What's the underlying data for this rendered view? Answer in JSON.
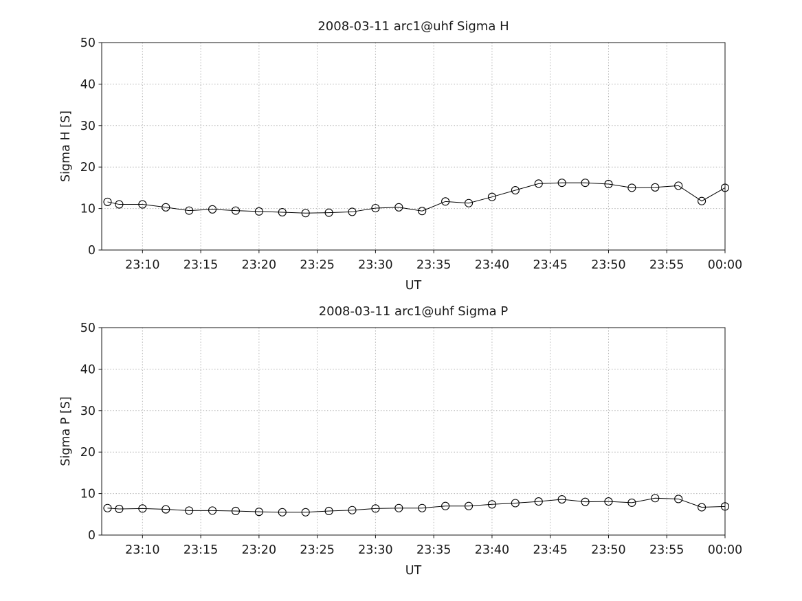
{
  "figure": {
    "background": "#ffffff",
    "line_color": "#000000",
    "grid_color": "#b5b5b5"
  },
  "chart_data": [
    {
      "type": "line",
      "title": "2008-03-11  arc1@uhf Sigma H",
      "xlabel": "UT",
      "ylabel": "Sigma H [S]",
      "ylim": [
        0,
        50
      ],
      "yticks": [
        0,
        10,
        20,
        30,
        40,
        50
      ],
      "xlim_minutes": [
        6.5,
        60
      ],
      "xticks_minutes": [
        10,
        15,
        20,
        25,
        30,
        35,
        40,
        45,
        50,
        55,
        60
      ],
      "xtick_labels": [
        "23:10",
        "23:15",
        "23:20",
        "23:25",
        "23:30",
        "23:35",
        "23:40",
        "23:45",
        "23:50",
        "23:55",
        "00:00"
      ],
      "marker": "open-circle",
      "grid": true,
      "x_minutes": [
        7,
        8,
        10,
        12,
        14,
        16,
        18,
        20,
        22,
        24,
        26,
        28,
        30,
        32,
        34,
        36,
        38,
        40,
        42,
        44,
        46,
        48,
        50,
        52,
        54,
        56,
        58,
        60
      ],
      "x_times": [
        "23:07",
        "23:08",
        "23:10",
        "23:12",
        "23:14",
        "23:16",
        "23:18",
        "23:20",
        "23:22",
        "23:24",
        "23:26",
        "23:28",
        "23:30",
        "23:32",
        "23:34",
        "23:36",
        "23:38",
        "23:40",
        "23:42",
        "23:44",
        "23:46",
        "23:48",
        "23:50",
        "23:52",
        "23:54",
        "23:56",
        "23:58",
        "00:00"
      ],
      "values": [
        11.6,
        11.0,
        11.0,
        10.3,
        9.5,
        9.8,
        9.5,
        9.3,
        9.1,
        8.9,
        9.0,
        9.2,
        10.1,
        10.3,
        9.4,
        11.7,
        11.3,
        12.8,
        14.4,
        16.0,
        16.2,
        16.2,
        15.9,
        15.0,
        15.1,
        15.5,
        11.8,
        15.0
      ]
    },
    {
      "type": "line",
      "title": "2008-03-11  arc1@uhf Sigma P",
      "xlabel": "UT",
      "ylabel": "Sigma P [S]",
      "ylim": [
        0,
        50
      ],
      "yticks": [
        0,
        10,
        20,
        30,
        40,
        50
      ],
      "xlim_minutes": [
        6.5,
        60
      ],
      "xticks_minutes": [
        10,
        15,
        20,
        25,
        30,
        35,
        40,
        45,
        50,
        55,
        60
      ],
      "xtick_labels": [
        "23:10",
        "23:15",
        "23:20",
        "23:25",
        "23:30",
        "23:35",
        "23:40",
        "23:45",
        "23:50",
        "23:55",
        "00:00"
      ],
      "marker": "open-circle",
      "grid": true,
      "x_minutes": [
        7,
        8,
        10,
        12,
        14,
        16,
        18,
        20,
        22,
        24,
        26,
        28,
        30,
        32,
        34,
        36,
        38,
        40,
        42,
        44,
        46,
        48,
        50,
        52,
        54,
        56,
        58,
        60
      ],
      "x_times": [
        "23:07",
        "23:08",
        "23:10",
        "23:12",
        "23:14",
        "23:16",
        "23:18",
        "23:20",
        "23:22",
        "23:24",
        "23:26",
        "23:28",
        "23:30",
        "23:32",
        "23:34",
        "23:36",
        "23:38",
        "23:40",
        "23:42",
        "23:44",
        "23:46",
        "23:48",
        "23:50",
        "23:52",
        "23:54",
        "23:56",
        "23:58",
        "00:00"
      ],
      "values": [
        6.5,
        6.3,
        6.4,
        6.2,
        5.9,
        5.9,
        5.8,
        5.6,
        5.5,
        5.5,
        5.8,
        6.0,
        6.4,
        6.5,
        6.5,
        7.0,
        7.0,
        7.4,
        7.7,
        8.1,
        8.6,
        8.0,
        8.1,
        7.8,
        8.9,
        8.7,
        6.7,
        6.9
      ]
    }
  ]
}
